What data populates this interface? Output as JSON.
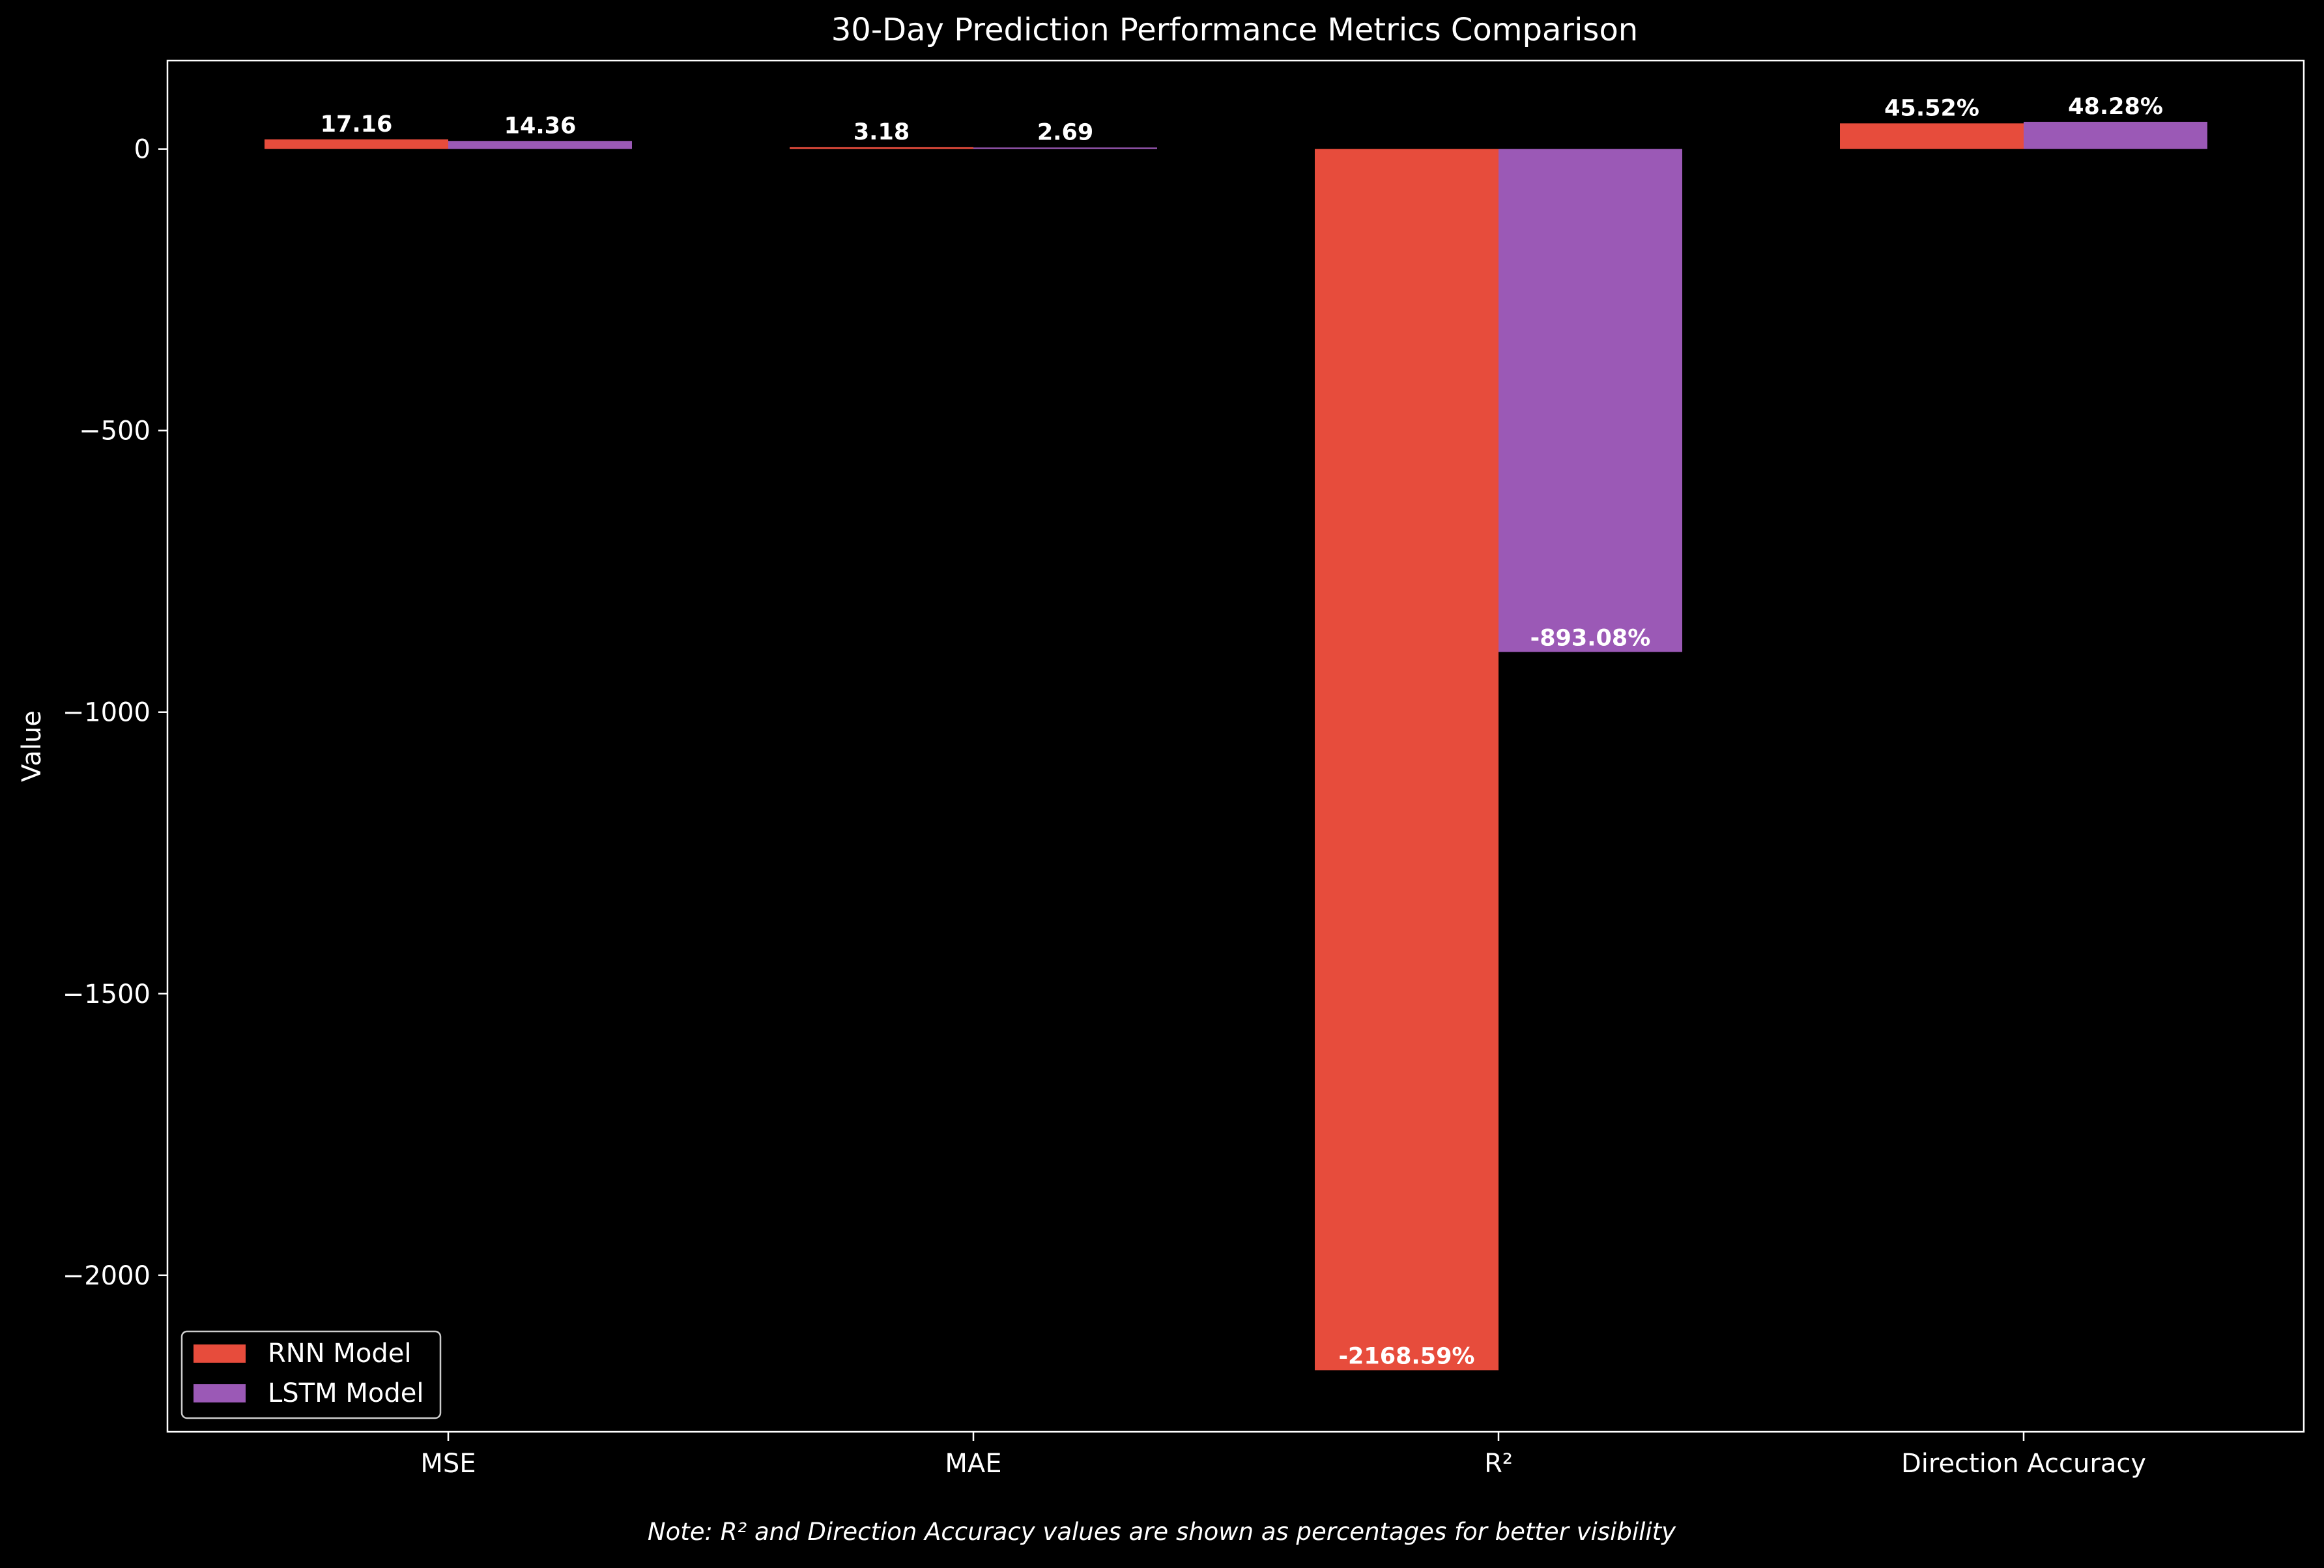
{
  "chart_data": {
    "type": "bar",
    "title": "30-Day Prediction Performance Metrics Comparison",
    "xlabel": "",
    "ylabel": "Value",
    "categories": [
      "MSE",
      "MAE",
      "R²",
      "Direction Accuracy"
    ],
    "series": [
      {
        "name": "RNN Model",
        "color": "#e74c3c",
        "values": [
          17.16,
          3.18,
          -2168.59,
          45.52
        ],
        "labels": [
          "17.16",
          "3.18",
          "-2168.59%",
          "45.52%"
        ]
      },
      {
        "name": "LSTM Model",
        "color": "#9b59b6",
        "values": [
          14.36,
          2.69,
          -893.08,
          48.28
        ],
        "labels": [
          "14.36",
          "2.69",
          "-893.08%",
          "48.28%"
        ]
      }
    ],
    "ylim": [
      -2278,
      157
    ],
    "yticks": [
      {
        "value": 0,
        "label": "0"
      },
      {
        "value": -500,
        "label": "−500"
      },
      {
        "value": -1000,
        "label": "−1000"
      },
      {
        "value": -1500,
        "label": "−1500"
      },
      {
        "value": -2000,
        "label": "−2000"
      }
    ],
    "grid": false,
    "legend_position": "lower-left",
    "note": "Note: R² and Direction Accuracy values are shown as percentages for better visibility",
    "colors": {
      "background": "#000000",
      "foreground": "#ffffff"
    }
  }
}
